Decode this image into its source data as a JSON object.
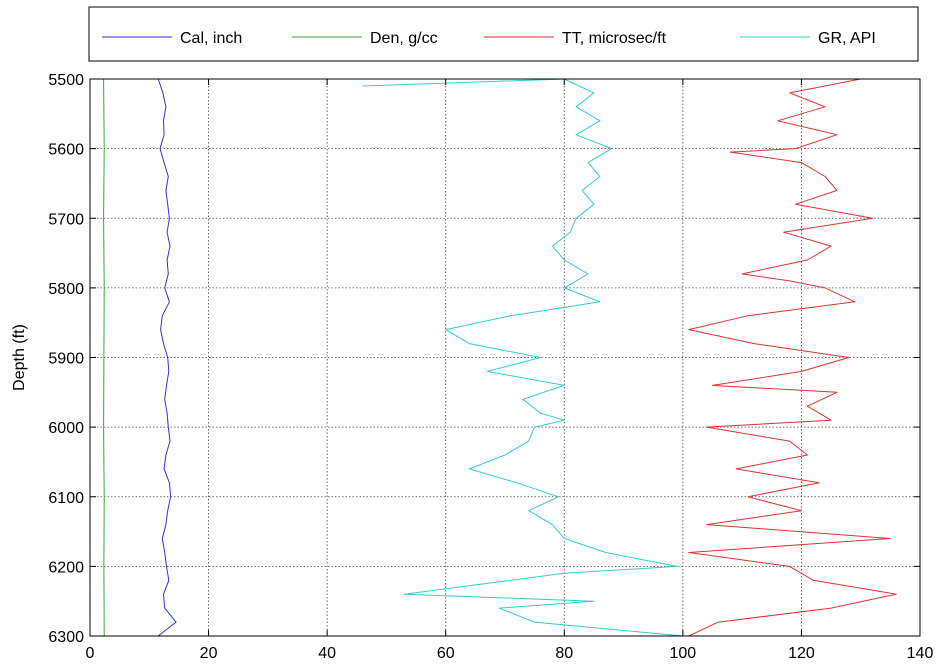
{
  "chart_data": {
    "type": "line",
    "title": "",
    "xlabel": "",
    "ylabel": "Depth (ft)",
    "xlim": [
      0,
      140
    ],
    "ylim": [
      5500,
      6300
    ],
    "y_reversed": true,
    "grid": true,
    "legend_position": "top",
    "x_ticks": [
      "0",
      "20",
      "40",
      "60",
      "80",
      "100",
      "120",
      "140"
    ],
    "y_ticks": [
      "5500",
      "5600",
      "5700",
      "5800",
      "5900",
      "6000",
      "6100",
      "6200",
      "6300"
    ],
    "series": [
      {
        "name": "Cal, inch",
        "color": "#3333cc",
        "points": [
          [
            11.5,
            5500
          ],
          [
            12.3,
            5520
          ],
          [
            12.8,
            5540
          ],
          [
            12.4,
            5560
          ],
          [
            12.5,
            5580
          ],
          [
            11.8,
            5600
          ],
          [
            12.5,
            5620
          ],
          [
            13.2,
            5640
          ],
          [
            12.8,
            5660
          ],
          [
            13.1,
            5680
          ],
          [
            13.4,
            5700
          ],
          [
            13.0,
            5720
          ],
          [
            13.5,
            5740
          ],
          [
            13.0,
            5760
          ],
          [
            13.2,
            5780
          ],
          [
            12.6,
            5800
          ],
          [
            13.4,
            5820
          ],
          [
            12.2,
            5840
          ],
          [
            11.9,
            5860
          ],
          [
            12.4,
            5880
          ],
          [
            13.1,
            5900
          ],
          [
            13.3,
            5920
          ],
          [
            12.9,
            5940
          ],
          [
            12.6,
            5960
          ],
          [
            13.0,
            5980
          ],
          [
            13.2,
            6000
          ],
          [
            13.5,
            6020
          ],
          [
            12.8,
            6040
          ],
          [
            12.5,
            6060
          ],
          [
            13.4,
            6080
          ],
          [
            13.6,
            6100
          ],
          [
            13.1,
            6120
          ],
          [
            12.8,
            6140
          ],
          [
            12.2,
            6160
          ],
          [
            12.6,
            6180
          ],
          [
            12.9,
            6200
          ],
          [
            13.3,
            6220
          ],
          [
            12.4,
            6240
          ],
          [
            12.6,
            6260
          ],
          [
            14.5,
            6280
          ],
          [
            11.5,
            6300
          ]
        ]
      },
      {
        "name": "Den, g/cc",
        "color": "#33aa33",
        "points": [
          [
            2.3,
            5500
          ],
          [
            2.4,
            5600
          ],
          [
            2.3,
            5700
          ],
          [
            2.4,
            5800
          ],
          [
            2.35,
            5900
          ],
          [
            2.3,
            6000
          ],
          [
            2.4,
            6100
          ],
          [
            2.35,
            6200
          ],
          [
            2.4,
            6300
          ]
        ]
      },
      {
        "name": "TT, microsec/ft",
        "color": "#dd3333",
        "points": [
          [
            130,
            5500
          ],
          [
            118,
            5520
          ],
          [
            124,
            5540
          ],
          [
            116,
            5560
          ],
          [
            126,
            5580
          ],
          [
            119,
            5600
          ],
          [
            108,
            5605
          ],
          [
            120,
            5620
          ],
          [
            124,
            5640
          ],
          [
            126,
            5660
          ],
          [
            119,
            5680
          ],
          [
            132,
            5700
          ],
          [
            117,
            5720
          ],
          [
            125,
            5740
          ],
          [
            121,
            5760
          ],
          [
            110,
            5780
          ],
          [
            118,
            5790
          ],
          [
            124,
            5800
          ],
          [
            129,
            5820
          ],
          [
            111,
            5840
          ],
          [
            101,
            5860
          ],
          [
            112,
            5880
          ],
          [
            128,
            5900
          ],
          [
            120,
            5920
          ],
          [
            105,
            5940
          ],
          [
            126,
            5950
          ],
          [
            121,
            5970
          ],
          [
            125,
            5990
          ],
          [
            104,
            6000
          ],
          [
            118,
            6020
          ],
          [
            121,
            6040
          ],
          [
            109,
            6060
          ],
          [
            123,
            6080
          ],
          [
            111,
            6100
          ],
          [
            120,
            6120
          ],
          [
            104,
            6140
          ],
          [
            135,
            6160
          ],
          [
            101,
            6180
          ],
          [
            118,
            6200
          ],
          [
            122,
            6220
          ],
          [
            136,
            6240
          ],
          [
            125,
            6260
          ],
          [
            106,
            6280
          ],
          [
            101,
            6300
          ]
        ]
      },
      {
        "name": "GR, API",
        "color": "#33cccc",
        "points": [
          [
            46,
            5510
          ],
          [
            80,
            5500
          ],
          [
            85,
            5520
          ],
          [
            82,
            5540
          ],
          [
            86,
            5560
          ],
          [
            82,
            5580
          ],
          [
            88,
            5600
          ],
          [
            84,
            5620
          ],
          [
            86,
            5640
          ],
          [
            83,
            5660
          ],
          [
            85,
            5680
          ],
          [
            82,
            5700
          ],
          [
            81,
            5720
          ],
          [
            78,
            5740
          ],
          [
            80,
            5760
          ],
          [
            84,
            5780
          ],
          [
            80,
            5800
          ],
          [
            86,
            5820
          ],
          [
            71,
            5840
          ],
          [
            60,
            5860
          ],
          [
            64,
            5880
          ],
          [
            76,
            5900
          ],
          [
            67,
            5920
          ],
          [
            80,
            5940
          ],
          [
            73,
            5960
          ],
          [
            76,
            5980
          ],
          [
            80,
            5990
          ],
          [
            75,
            6000
          ],
          [
            74,
            6020
          ],
          [
            70,
            6040
          ],
          [
            64,
            6060
          ],
          [
            72,
            6080
          ],
          [
            79,
            6100
          ],
          [
            74,
            6120
          ],
          [
            78,
            6140
          ],
          [
            80,
            6160
          ],
          [
            87,
            6180
          ],
          [
            99,
            6200
          ],
          [
            80,
            6210
          ],
          [
            53,
            6240
          ],
          [
            85,
            6250
          ],
          [
            69,
            6260
          ],
          [
            75,
            6280
          ],
          [
            100,
            6300
          ]
        ]
      }
    ]
  }
}
